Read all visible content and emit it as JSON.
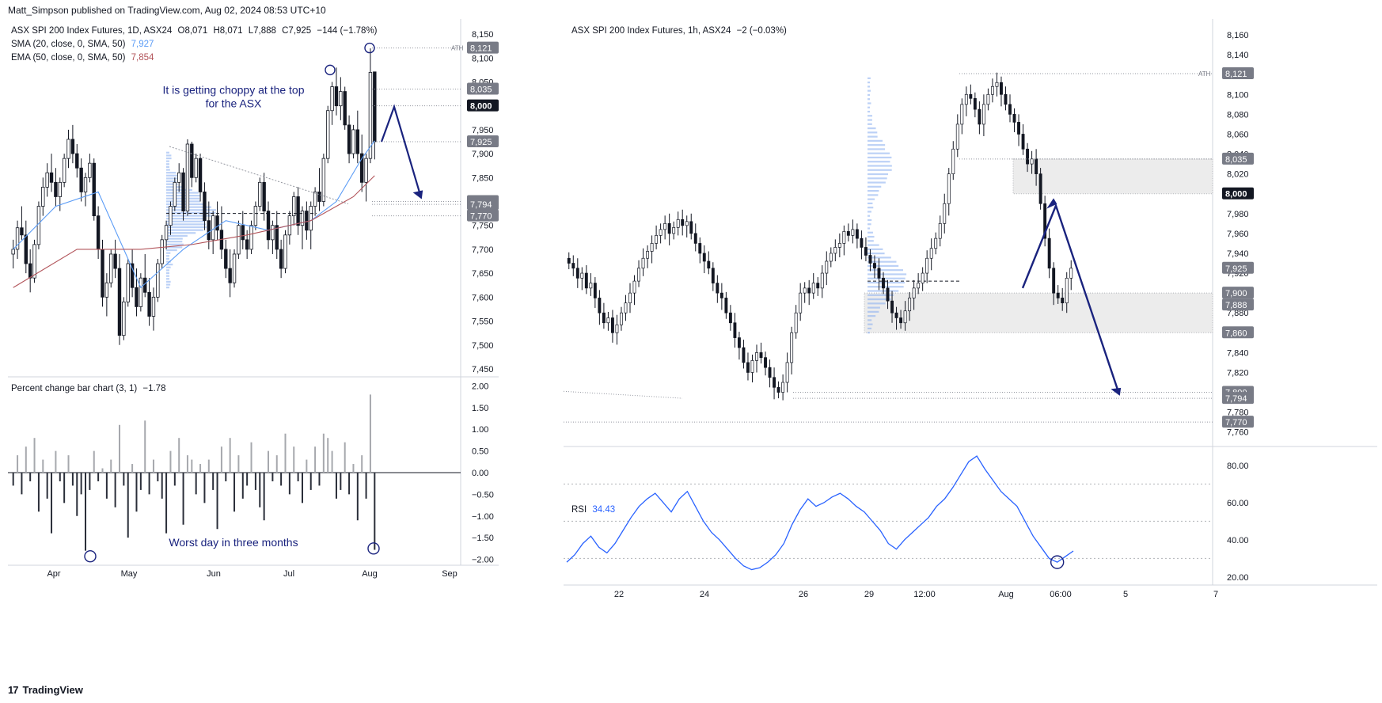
{
  "header": {
    "attribution": "Matt_Simpson published on TradingView.com, Aug 02, 2024 08:53 UTC+10"
  },
  "footer": {
    "brand": "TradingView",
    "logo_icon": "tradingview-logo-icon"
  },
  "colors": {
    "up": "#131722",
    "down": "#131722",
    "sma": "#5b9cf6",
    "ema": "#b2545a",
    "rsi": "#2962ff",
    "arrow": "#1a237e",
    "vp": "#8fb3f0"
  },
  "left": {
    "legend": {
      "title": "ASX SPI 200 Index Futures, 1D, ASX24",
      "o": "O8,071",
      "h": "H8,071",
      "l": "L7,888",
      "c": "C7,925",
      "chg": "−144 (−1.78%)",
      "sma_label": "SMA (20, close, 0, SMA, 50)",
      "sma_value": "7,927",
      "ema_label": "EMA (50, close, 0, SMA, 50)",
      "ema_value": "7,854"
    },
    "annotation": "It is getting choppy at the top\nfor the ASX",
    "pct_title": "Percent change bar chart (3, 1)",
    "pct_value": "−1.78",
    "pct_annotation": "Worst day in three months",
    "ath": "ATH"
  },
  "right": {
    "legend": {
      "title": "ASX SPI 200 Index Futures, 1h, ASX24",
      "chg": "−2 (−0.03%)"
    },
    "rsi_title": "RSI",
    "rsi_value": "34.43",
    "ath": "ATH"
  },
  "chart_data": [
    {
      "type": "candlestick",
      "title": "ASX SPI 200 Index Futures, 1D, ASX24",
      "y_ticks": [
        "8,150",
        "8,100",
        "8,050",
        "8,000",
        "7,950",
        "7,900",
        "7,850",
        "7,800",
        "7,750",
        "7,700",
        "7,650",
        "7,600",
        "7,550",
        "7,500",
        "7,450"
      ],
      "ylim": [
        7440,
        8165
      ],
      "x_ticks": [
        "Apr",
        "May",
        "Jun",
        "Jul",
        "Aug",
        "Sep"
      ],
      "price_labels": [
        {
          "value": 8121,
          "text": "8,121"
        },
        {
          "value": 8035,
          "text": "8,035"
        },
        {
          "value": 8000,
          "text": "8,000"
        },
        {
          "value": 7925,
          "text": "7,925"
        },
        {
          "value": 7800,
          "text": "7,800"
        },
        {
          "value": 7794,
          "text": "7,794"
        },
        {
          "value": 7770,
          "text": "7,770"
        }
      ],
      "ohlc": [
        [
          7690,
          7720,
          7660,
          7700
        ],
        [
          7700,
          7760,
          7680,
          7745
        ],
        [
          7745,
          7790,
          7720,
          7730
        ],
        [
          7730,
          7760,
          7650,
          7670
        ],
        [
          7670,
          7700,
          7610,
          7640
        ],
        [
          7640,
          7720,
          7630,
          7710
        ],
        [
          7710,
          7800,
          7700,
          7790
        ],
        [
          7790,
          7850,
          7770,
          7830
        ],
        [
          7830,
          7880,
          7810,
          7860
        ],
        [
          7860,
          7900,
          7820,
          7840
        ],
        [
          7840,
          7870,
          7790,
          7810
        ],
        [
          7810,
          7850,
          7780,
          7840
        ],
        [
          7840,
          7900,
          7830,
          7890
        ],
        [
          7890,
          7950,
          7870,
          7930
        ],
        [
          7930,
          7960,
          7880,
          7900
        ],
        [
          7900,
          7920,
          7850,
          7870
        ],
        [
          7870,
          7890,
          7800,
          7820
        ],
        [
          7820,
          7860,
          7790,
          7850
        ],
        [
          7850,
          7900,
          7840,
          7880
        ],
        [
          7880,
          7890,
          7760,
          7770
        ],
        [
          7770,
          7790,
          7680,
          7700
        ],
        [
          7700,
          7720,
          7580,
          7600
        ],
        [
          7600,
          7650,
          7560,
          7630
        ],
        [
          7630,
          7700,
          7620,
          7690
        ],
        [
          7690,
          7720,
          7640,
          7660
        ],
        [
          7660,
          7690,
          7500,
          7520
        ],
        [
          7520,
          7600,
          7510,
          7590
        ],
        [
          7590,
          7680,
          7580,
          7670
        ],
        [
          7670,
          7700,
          7600,
          7620
        ],
        [
          7620,
          7660,
          7560,
          7580
        ],
        [
          7580,
          7650,
          7570,
          7640
        ],
        [
          7640,
          7690,
          7600,
          7610
        ],
        [
          7610,
          7640,
          7540,
          7560
        ],
        [
          7560,
          7620,
          7530,
          7600
        ],
        [
          7600,
          7680,
          7590,
          7670
        ],
        [
          7670,
          7730,
          7660,
          7720
        ],
        [
          7720,
          7760,
          7700,
          7750
        ],
        [
          7750,
          7800,
          7730,
          7790
        ],
        [
          7790,
          7850,
          7780,
          7840
        ],
        [
          7840,
          7880,
          7820,
          7860
        ],
        [
          7860,
          7870,
          7760,
          7780
        ],
        [
          7780,
          7930,
          7770,
          7920
        ],
        [
          7920,
          7925,
          7830,
          7850
        ],
        [
          7850,
          7900,
          7840,
          7890
        ],
        [
          7890,
          7900,
          7800,
          7820
        ],
        [
          7820,
          7840,
          7740,
          7760
        ],
        [
          7760,
          7800,
          7700,
          7720
        ],
        [
          7720,
          7780,
          7690,
          7770
        ],
        [
          7770,
          7800,
          7720,
          7740
        ],
        [
          7740,
          7790,
          7680,
          7700
        ],
        [
          7700,
          7720,
          7640,
          7660
        ],
        [
          7660,
          7700,
          7600,
          7630
        ],
        [
          7630,
          7700,
          7620,
          7690
        ],
        [
          7690,
          7760,
          7680,
          7750
        ],
        [
          7750,
          7780,
          7700,
          7720
        ],
        [
          7720,
          7740,
          7680,
          7700
        ],
        [
          7700,
          7760,
          7690,
          7750
        ],
        [
          7750,
          7800,
          7740,
          7790
        ],
        [
          7790,
          7850,
          7780,
          7840
        ],
        [
          7840,
          7860,
          7760,
          7780
        ],
        [
          7780,
          7800,
          7700,
          7720
        ],
        [
          7720,
          7760,
          7690,
          7750
        ],
        [
          7750,
          7780,
          7680,
          7700
        ],
        [
          7700,
          7720,
          7640,
          7660
        ],
        [
          7660,
          7740,
          7650,
          7730
        ],
        [
          7730,
          7780,
          7710,
          7770
        ],
        [
          7770,
          7820,
          7750,
          7810
        ],
        [
          7810,
          7830,
          7730,
          7750
        ],
        [
          7750,
          7790,
          7700,
          7780
        ],
        [
          7780,
          7800,
          7720,
          7740
        ],
        [
          7740,
          7800,
          7700,
          7790
        ],
        [
          7790,
          7830,
          7770,
          7820
        ],
        [
          7820,
          7870,
          7780,
          7800
        ],
        [
          7800,
          7900,
          7790,
          7890
        ],
        [
          7890,
          8000,
          7880,
          7990
        ],
        [
          7990,
          8050,
          7960,
          8040
        ],
        [
          8040,
          8080,
          7980,
          8000
        ],
        [
          8000,
          8060,
          7970,
          8030
        ],
        [
          8030,
          8040,
          7950,
          7960
        ],
        [
          7960,
          7980,
          7880,
          7900
        ],
        [
          7900,
          7960,
          7890,
          7950
        ],
        [
          7950,
          7990,
          7880,
          7900
        ],
        [
          7900,
          7940,
          7820,
          7840
        ],
        [
          7840,
          7900,
          7800,
          7890
        ],
        [
          7890,
          8120,
          7880,
          8070
        ],
        [
          8071,
          8071,
          7888,
          7925
        ]
      ],
      "sma": [
        [
          0,
          7700
        ],
        [
          10,
          7790
        ],
        [
          20,
          7820
        ],
        [
          30,
          7620
        ],
        [
          40,
          7700
        ],
        [
          50,
          7760
        ],
        [
          60,
          7740
        ],
        [
          70,
          7760
        ],
        [
          76,
          7800
        ],
        [
          82,
          7890
        ],
        [
          85,
          7927
        ]
      ],
      "ema": [
        [
          0,
          7620
        ],
        [
          15,
          7700
        ],
        [
          30,
          7700
        ],
        [
          42,
          7710
        ],
        [
          55,
          7730
        ],
        [
          70,
          7760
        ],
        [
          80,
          7810
        ],
        [
          85,
          7854
        ]
      ]
    },
    {
      "type": "bar",
      "title": "Percent change bar chart (3, 1)",
      "y_ticks": [
        "2.00",
        "1.50",
        "1.00",
        "0.50",
        "0.00",
        "−0.50",
        "−1.00",
        "−1.50",
        "−2.00"
      ],
      "ylim": [
        -2.1,
        2.1
      ],
      "values": [
        -0.3,
        0.4,
        -0.5,
        0.6,
        -0.2,
        0.8,
        -0.9,
        0.3,
        -0.6,
        -1.4,
        0.5,
        -0.2,
        -0.7,
        0.4,
        -0.3,
        -1.0,
        -0.5,
        -1.8,
        -0.4,
        0.5,
        -0.2,
        0.1,
        -0.6,
        0.3,
        -0.8,
        1.1,
        -0.3,
        -1.5,
        0.2,
        -0.9,
        -0.4,
        1.2,
        -0.5,
        0.3,
        -0.2,
        -0.6,
        -1.4,
        0.5,
        -0.3,
        0.8,
        -1.2,
        0.4,
        0.3,
        -0.5,
        0.2,
        -0.7,
        0.3,
        -0.4,
        -1.3,
        0.6,
        -0.2,
        0.8,
        -0.9,
        0.4,
        -0.6,
        -0.3,
        0.7,
        -0.4,
        -0.8,
        -1.1,
        0.5,
        -0.2,
        0.4,
        -0.3,
        0.9,
        -0.5,
        0.6,
        -0.2,
        -0.7,
        0.3,
        -0.4,
        0.6,
        -0.3,
        0.9,
        0.8,
        0.5,
        -0.6,
        -0.4,
        0.7,
        -0.5,
        0.2,
        -1.1,
        0.4,
        -0.6,
        1.8,
        -1.78
      ]
    },
    {
      "type": "candlestick",
      "title": "ASX SPI 200 Index Futures, 1h, ASX24",
      "y_ticks": [
        "8,160",
        "8,140",
        "8,120",
        "8,100",
        "8,080",
        "8,060",
        "8,040",
        "8,020",
        "8,000",
        "7,980",
        "7,960",
        "7,940",
        "7,920",
        "7,900",
        "7,880",
        "7,860",
        "7,840",
        "7,820",
        "7,800",
        "7,780",
        "7,760"
      ],
      "ylim": [
        7755,
        8168
      ],
      "x_ticks": [
        "22",
        "24",
        "26",
        "29",
        "12:00",
        "Aug",
        "06:00",
        "5",
        "7"
      ],
      "price_labels": [
        {
          "value": 8121,
          "text": "8,121"
        },
        {
          "value": 8035,
          "text": "8,035"
        },
        {
          "value": 8000,
          "text": "8,000"
        },
        {
          "value": 7925,
          "text": "7,925"
        },
        {
          "value": 7900,
          "text": "7,900"
        },
        {
          "value": 7888,
          "text": "7,888"
        },
        {
          "value": 7860,
          "text": "7,860"
        },
        {
          "value": 7800,
          "text": "7,800"
        },
        {
          "value": 7794,
          "text": "7,794"
        },
        {
          "value": 7770,
          "text": "7,770"
        }
      ],
      "closes": [
        7930,
        7925,
        7915,
        7920,
        7905,
        7910,
        7895,
        7880,
        7870,
        7875,
        7860,
        7868,
        7880,
        7890,
        7900,
        7912,
        7925,
        7935,
        7942,
        7950,
        7958,
        7964,
        7970,
        7960,
        7966,
        7974,
        7968,
        7972,
        7960,
        7950,
        7940,
        7932,
        7925,
        7910,
        7900,
        7895,
        7880,
        7870,
        7855,
        7845,
        7830,
        7820,
        7832,
        7840,
        7835,
        7825,
        7815,
        7805,
        7800,
        7810,
        7830,
        7860,
        7880,
        7900,
        7905,
        7900,
        7910,
        7905,
        7920,
        7932,
        7940,
        7946,
        7950,
        7962,
        7958,
        7964,
        7955,
        7946,
        7938,
        7930,
        7925,
        7915,
        7905,
        7892,
        7880,
        7875,
        7870,
        7882,
        7895,
        7905,
        7910,
        7920,
        7935,
        7945,
        7955,
        7970,
        7990,
        8020,
        8045,
        8070,
        8090,
        8100,
        8096,
        8085,
        8070,
        8090,
        8100,
        8108,
        8112,
        8100,
        8090,
        8080,
        8072,
        8060,
        8045,
        8030,
        8035,
        8020,
        7990,
        7955,
        7925,
        7900,
        7895,
        7890,
        7915,
        7925
      ],
      "ema_vp_poc": 7912
    },
    {
      "type": "line",
      "title": "RSI",
      "y_ticks": [
        "80.00",
        "60.00",
        "40.00",
        "20.00"
      ],
      "ylim": [
        17,
        88
      ],
      "values": [
        28,
        32,
        38,
        42,
        36,
        33,
        38,
        45,
        52,
        58,
        62,
        65,
        60,
        55,
        62,
        66,
        58,
        50,
        44,
        40,
        35,
        30,
        26,
        24,
        25,
        28,
        32,
        38,
        48,
        56,
        62,
        58,
        60,
        63,
        65,
        62,
        58,
        55,
        50,
        45,
        38,
        35,
        40,
        44,
        48,
        52,
        58,
        62,
        68,
        75,
        82,
        85,
        78,
        72,
        66,
        62,
        58,
        50,
        42,
        36,
        30,
        28,
        31,
        34
      ]
    }
  ]
}
